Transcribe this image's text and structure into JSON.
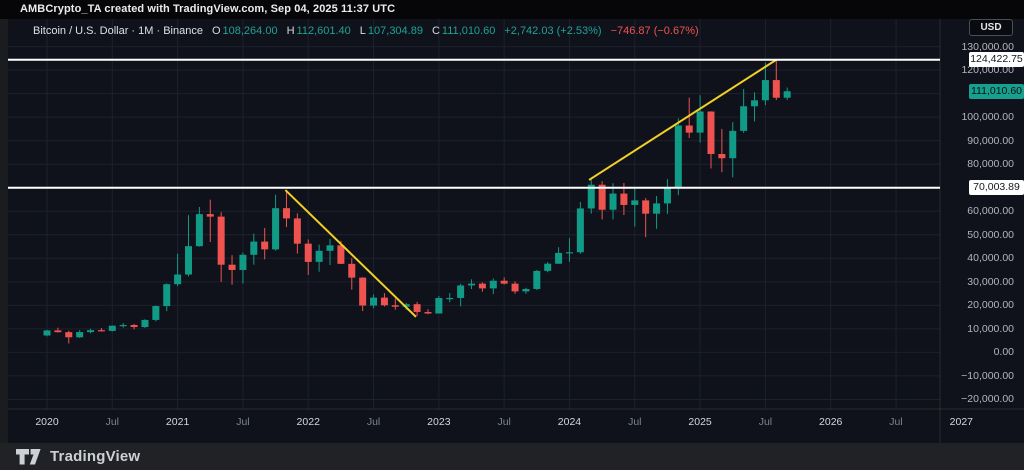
{
  "attribution": "AMBCrypto_TA created with TradingView.com, Sep 04, 2025 11:37 UTC",
  "legend": {
    "title": "Bitcoin / U.S. Dollar · 1M · Binance",
    "fields": [
      {
        "label": "O",
        "value": "108,264.00"
      },
      {
        "label": "H",
        "value": "112,601.40"
      },
      {
        "label": "L",
        "value": "107,304.89"
      },
      {
        "label": "C",
        "value": "111,010.60"
      }
    ],
    "change": "+2,742.03 (+2.53%)",
    "change2": "−746.87 (−0.67%)"
  },
  "axis": {
    "currency_button": "USD",
    "price_labels": [
      {
        "text": "130,000.00",
        "value": 130000
      },
      {
        "text": "120,000.00",
        "value": 120000
      },
      {
        "text": "100,000.00",
        "value": 100000
      },
      {
        "text": "90,000.00",
        "value": 90000
      },
      {
        "text": "80,000.00",
        "value": 80000
      },
      {
        "text": "60,000.00",
        "value": 60000
      },
      {
        "text": "50,000.00",
        "value": 50000
      },
      {
        "text": "40,000.00",
        "value": 40000
      },
      {
        "text": "30,000.00",
        "value": 30000
      },
      {
        "text": "20,000.00",
        "value": 20000
      },
      {
        "text": "10,000.00",
        "value": 10000
      },
      {
        "text": "0.00",
        "value": 0
      },
      {
        "text": "−10,000.00",
        "value": -10000
      },
      {
        "text": "−20,000.00",
        "value": -20000
      }
    ],
    "time_labels": [
      {
        "text": "2020",
        "month_index": 0,
        "major": true
      },
      {
        "text": "Jul",
        "month_index": 6,
        "major": false
      },
      {
        "text": "2021",
        "month_index": 12,
        "major": true
      },
      {
        "text": "Jul",
        "month_index": 18,
        "major": false
      },
      {
        "text": "2022",
        "month_index": 24,
        "major": true
      },
      {
        "text": "Jul",
        "month_index": 30,
        "major": false
      },
      {
        "text": "2023",
        "month_index": 36,
        "major": true
      },
      {
        "text": "Jul",
        "month_index": 42,
        "major": false
      },
      {
        "text": "2024",
        "month_index": 48,
        "major": true
      },
      {
        "text": "Jul",
        "month_index": 54,
        "major": false
      },
      {
        "text": "2025",
        "month_index": 60,
        "major": true
      },
      {
        "text": "Jul",
        "month_index": 66,
        "major": false
      },
      {
        "text": "2026",
        "month_index": 72,
        "major": true
      },
      {
        "text": "Jul",
        "month_index": 78,
        "major": false
      },
      {
        "text": "2027",
        "month_index": 84,
        "major": true
      }
    ]
  },
  "price_lines": [
    {
      "label": "124,422.75",
      "value": 124422.75,
      "color": "#ffffff",
      "text_color": "#131722"
    },
    {
      "label": "70,003.89",
      "value": 70003.89,
      "color": "#ffffff",
      "text_color": "#131722"
    }
  ],
  "last_price_label": {
    "text": "111,010.60",
    "value": 111010.6,
    "color": "#17a08d",
    "text_color": "#0b1016"
  },
  "trendlines": [
    {
      "name": "descending-trendline",
      "from_month": 21.9,
      "from_price": 69000,
      "to_month": 33.9,
      "to_price": 15100
    },
    {
      "name": "ascending-trendline",
      "from_month": 49.8,
      "from_price": 73300,
      "to_month": 67.0,
      "to_price": 124400
    }
  ],
  "colors": {
    "background": "#10121b",
    "grid": "#1c212e",
    "up": "#119b86",
    "up_bright": "#1fa294",
    "down": "#ef5350",
    "trendline": "#f2d024",
    "horizontal_line": "#ffffff"
  },
  "footer": {
    "brand": "TradingView"
  },
  "chart_data": {
    "type": "candlestick",
    "title": "Bitcoin / U.S. Dollar",
    "exchange": "Binance",
    "interval": "1M",
    "start_month": "2020-01",
    "ylabel": "USD",
    "ylim": [
      -25000,
      135000
    ],
    "grid": true,
    "candles_ohlc_usd": [
      [
        7200,
        9600,
        6850,
        9350
      ],
      [
        9350,
        10500,
        8450,
        8600
      ],
      [
        8600,
        9200,
        3800,
        6430
      ],
      [
        6430,
        9460,
        6150,
        8630
      ],
      [
        8630,
        10070,
        8100,
        9450
      ],
      [
        9450,
        10380,
        8830,
        9140
      ],
      [
        9140,
        11450,
        8900,
        11350
      ],
      [
        11350,
        12480,
        10550,
        11650
      ],
      [
        11650,
        12100,
        9800,
        10780
      ],
      [
        10780,
        14100,
        10380,
        13800
      ],
      [
        13800,
        19900,
        13200,
        19700
      ],
      [
        19700,
        29300,
        17570,
        28990
      ],
      [
        28990,
        41990,
        28130,
        33110
      ],
      [
        33110,
        58360,
        32300,
        45160
      ],
      [
        45160,
        61840,
        44950,
        58780
      ],
      [
        58780,
        64900,
        46930,
        57720
      ],
      [
        57720,
        59590,
        30000,
        37280
      ],
      [
        37280,
        41330,
        28800,
        35040
      ],
      [
        35040,
        42450,
        29270,
        41490
      ],
      [
        41490,
        50500,
        37300,
        47110
      ],
      [
        47110,
        52920,
        39570,
        43790
      ],
      [
        43790,
        67000,
        43290,
        61300
      ],
      [
        61300,
        69000,
        53260,
        56950
      ],
      [
        56950,
        59100,
        42000,
        46210
      ],
      [
        46210,
        47990,
        32930,
        38480
      ],
      [
        38480,
        45820,
        34300,
        43190
      ],
      [
        43190,
        48200,
        37150,
        45520
      ],
      [
        45520,
        47440,
        37580,
        37640
      ],
      [
        37640,
        40000,
        26700,
        31790
      ],
      [
        31790,
        31960,
        17600,
        19920
      ],
      [
        19920,
        24670,
        18780,
        23290
      ],
      [
        23290,
        25200,
        19520,
        20040
      ],
      [
        20040,
        22800,
        18120,
        19420
      ],
      [
        19420,
        21080,
        18150,
        20490
      ],
      [
        20490,
        21480,
        15480,
        17160
      ],
      [
        17160,
        18370,
        16260,
        16540
      ],
      [
        16540,
        23960,
        16490,
        23120
      ],
      [
        23120,
        25250,
        21350,
        23140
      ],
      [
        23140,
        29180,
        19550,
        28470
      ],
      [
        28470,
        31050,
        26940,
        29230
      ],
      [
        29230,
        29820,
        25800,
        27210
      ],
      [
        27210,
        31430,
        24750,
        30470
      ],
      [
        30470,
        31840,
        28850,
        29230
      ],
      [
        29230,
        30190,
        24900,
        25930
      ],
      [
        25930,
        27480,
        24900,
        26960
      ],
      [
        26960,
        35000,
        26520,
        34650
      ],
      [
        34650,
        38420,
        34100,
        37710
      ],
      [
        37710,
        44700,
        37610,
        42280
      ],
      [
        42280,
        48590,
        38500,
        42580
      ],
      [
        42580,
        63930,
        41880,
        61200
      ],
      [
        61200,
        73780,
        59000,
        71280
      ],
      [
        71280,
        72800,
        56500,
        60640
      ],
      [
        60640,
        71950,
        56550,
        67520
      ],
      [
        67520,
        71990,
        58400,
        62680
      ],
      [
        62680,
        69990,
        53490,
        64620
      ],
      [
        64620,
        65600,
        49000,
        58970
      ],
      [
        58970,
        66500,
        52530,
        63330
      ],
      [
        63330,
        73620,
        58870,
        70220
      ],
      [
        70220,
        99500,
        66830,
        96450
      ],
      [
        96450,
        108300,
        91150,
        93430
      ],
      [
        93430,
        109350,
        89150,
        102400
      ],
      [
        102400,
        102500,
        78170,
        84350
      ],
      [
        84350,
        95000,
        76600,
        82550
      ],
      [
        82550,
        97900,
        74420,
        94180
      ],
      [
        94180,
        111980,
        93340,
        104630
      ],
      [
        104630,
        110560,
        98200,
        107170
      ],
      [
        107170,
        123230,
        105100,
        115760
      ],
      [
        115760,
        124420,
        107250,
        108260
      ],
      [
        108260,
        112600,
        107300,
        111010
      ]
    ]
  }
}
